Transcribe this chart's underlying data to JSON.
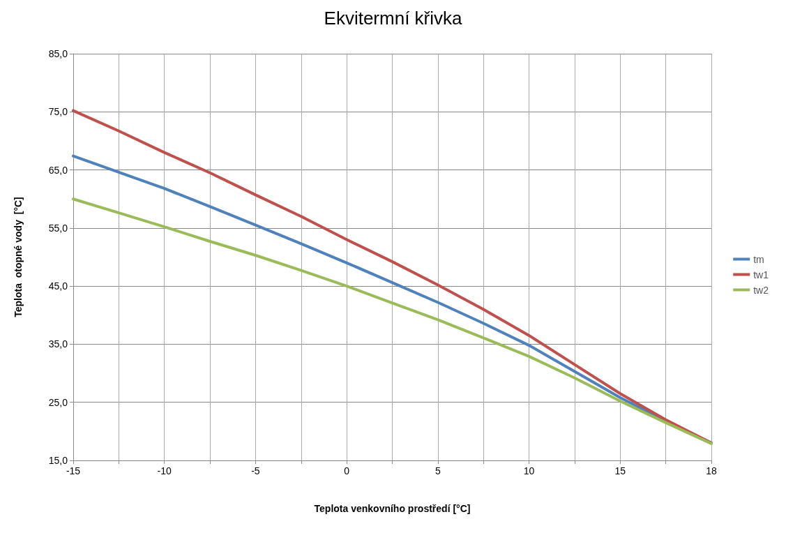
{
  "chart_data": {
    "type": "line",
    "title": "Ekvitermní křivka",
    "xlabel": "Teplota venkovního prostředí [°C]",
    "ylabel": "Teplota  otopné vody  [°C]",
    "categories": [
      "-15",
      null,
      "-10",
      null,
      "-5",
      null,
      "0",
      null,
      "5",
      null,
      "10",
      null,
      "15",
      null,
      "18"
    ],
    "series": [
      {
        "name": "tm",
        "color": "#4f81bd",
        "values": [
          67.4,
          64.6,
          61.8,
          58.7,
          55.5,
          52.3,
          49.0,
          45.6,
          42.2,
          38.6,
          34.8,
          30.3,
          25.8,
          21.8,
          18.0
        ]
      },
      {
        "name": "tw1",
        "color": "#c0504d",
        "values": [
          75.2,
          71.7,
          68.0,
          64.5,
          60.7,
          57.0,
          53.0,
          49.2,
          45.2,
          41.0,
          36.5,
          31.5,
          26.5,
          22.0,
          18.0
        ]
      },
      {
        "name": "tw2",
        "color": "#9bbb59",
        "values": [
          60.0,
          57.6,
          55.2,
          52.7,
          50.3,
          47.7,
          45.0,
          42.1,
          39.2,
          36.1,
          32.9,
          29.2,
          25.2,
          21.5,
          17.9
        ]
      }
    ],
    "ylim": [
      15,
      85
    ],
    "yticks": [
      {
        "value": 15,
        "label": "15,0"
      },
      {
        "value": 25,
        "label": "25,0"
      },
      {
        "value": 35,
        "label": "35,0"
      },
      {
        "value": 45,
        "label": "45,0"
      },
      {
        "value": 55,
        "label": "55,0"
      },
      {
        "value": 65,
        "label": "65,0"
      },
      {
        "value": 75,
        "label": "75,0"
      },
      {
        "value": 85,
        "label": "85,0"
      }
    ],
    "grid": true,
    "legend": "right",
    "marker": "none",
    "line_style": "solid"
  }
}
